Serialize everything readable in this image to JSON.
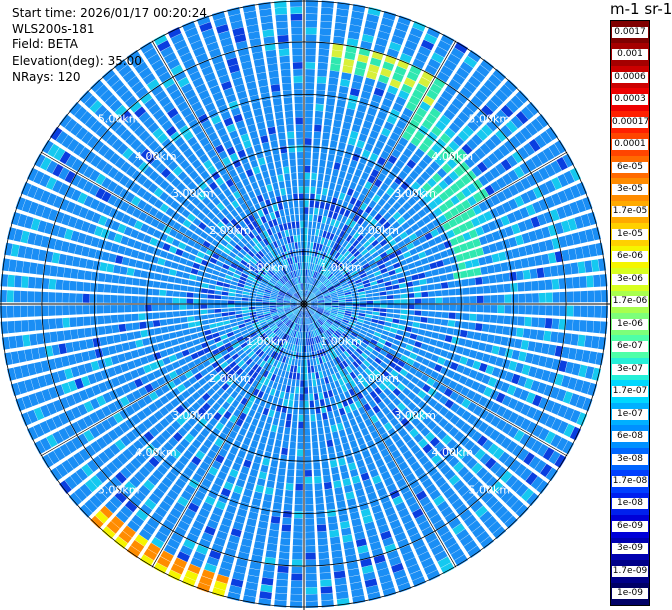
{
  "header": {
    "start_time": "Start time: 2026/01/17 00:20:24",
    "instrument": "WLS200s-181",
    "field": "Field: BETA",
    "elevation": "Elevation(deg): 35.00",
    "nrays": "NRays: 120"
  },
  "colorbar": {
    "title": "m-1 sr-1",
    "labels": [
      "0.0017",
      "0.001",
      "0.0006",
      "0.0003",
      "0.00017",
      "0.0001",
      "6e-05",
      "3e-05",
      "1.7e-05",
      "1e-05",
      "6e-06",
      "3e-06",
      "1.7e-06",
      "1e-06",
      "6e-07",
      "3e-07",
      "1.7e-07",
      "1e-07",
      "6e-08",
      "3e-08",
      "1.7e-08",
      "1e-08",
      "6e-09",
      "3e-09",
      "1.7e-09",
      "1e-09"
    ],
    "colors": [
      "#7f0000",
      "#a50000",
      "#cc0000",
      "#ee0000",
      "#ff2000",
      "#ff4500",
      "#ff6a00",
      "#ff8c00",
      "#ffaa00",
      "#ffd000",
      "#f5f500",
      "#d8ff20",
      "#a8ff4f",
      "#7dff7a",
      "#4effa8",
      "#26f0d8",
      "#00d8ff",
      "#00b0ff",
      "#0090ff",
      "#0066ff",
      "#0040ff",
      "#0020ee",
      "#0000d8",
      "#0000b0",
      "#000088",
      "#000066"
    ]
  },
  "range_rings": {
    "labels": [
      "1.00km",
      "2.00km",
      "3.00km",
      "4.00km",
      "5.00km"
    ],
    "km": [
      1,
      2,
      3,
      4,
      5
    ]
  },
  "ppi": {
    "nrays": 120,
    "elevation_deg": 35.0,
    "max_range_km": 5.8,
    "weak_color": "#1a8ef5",
    "mid_color": "#15c9f0",
    "strong_color": "#2fe8b0",
    "hot_color": "#d8f03a",
    "dark_color": "#0a3ee0",
    "aerosol_ring": [
      {
        "az_deg": 20,
        "range_km": 4.8,
        "level": "hot"
      },
      {
        "az_deg": 45,
        "range_km": 3.9,
        "level": "strong"
      },
      {
        "az_deg": 60,
        "range_km": 3.3,
        "level": "strong"
      },
      {
        "az_deg": 210,
        "range_km": 5.6,
        "level": "warm"
      }
    ]
  }
}
